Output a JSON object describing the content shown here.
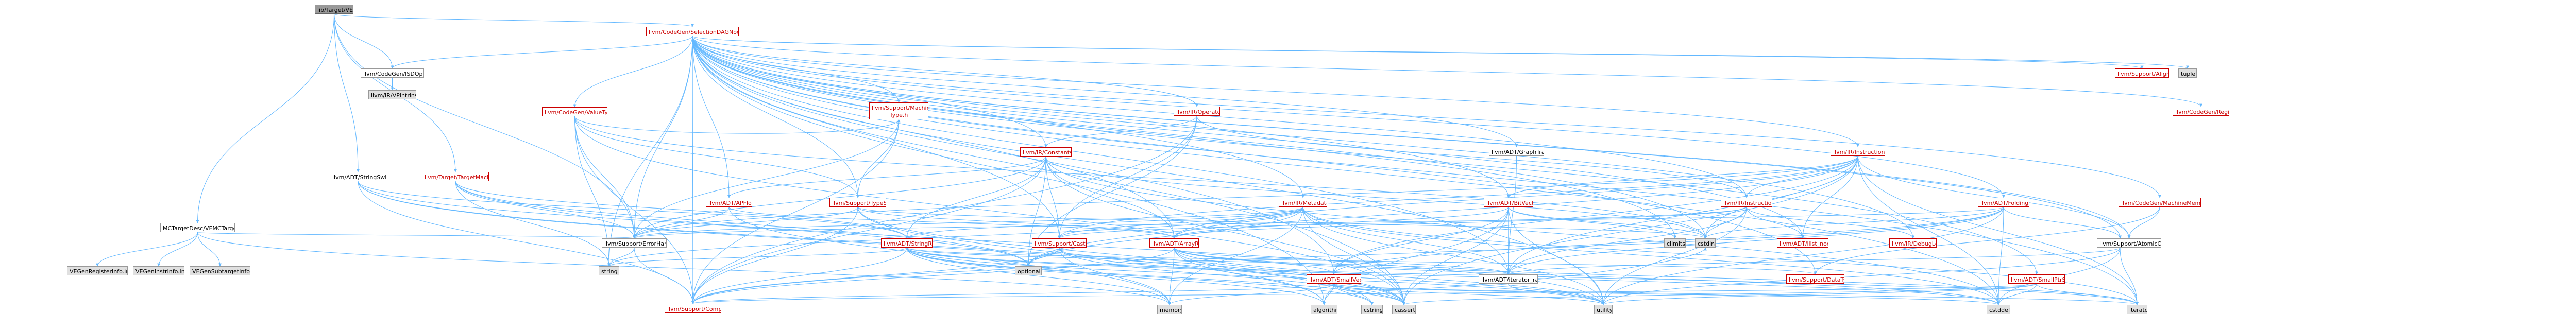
{
  "diagram": {
    "title": "VE/VE.h include dependency graph",
    "nodes": [
      {
        "id": "ve",
        "label": "lib/Target/VE/VE.h",
        "style": "root"
      },
      {
        "id": "dagnodes",
        "label": "llvm/CodeGen/SelectionDAGNodes.h",
        "style": "red"
      },
      {
        "id": "isdopcodes",
        "label": "llvm/CodeGen/ISDOpcodes.h",
        "style": "plain"
      },
      {
        "id": "vpintrinsics",
        "label": "llvm/IR/VPIntrinsics.def",
        "style": "gray"
      },
      {
        "id": "valuetypes",
        "label": "llvm/CodeGen/ValueTypes.h",
        "style": "red"
      },
      {
        "id": "machinevaluetype",
        "label": "llvm/Support/MachineValue Type.h",
        "style": "red"
      },
      {
        "id": "operator",
        "label": "llvm/IR/Operator.h",
        "style": "red"
      },
      {
        "id": "constants",
        "label": "llvm/IR/Constants.h",
        "style": "red"
      },
      {
        "id": "stringswitch",
        "label": "llvm/ADT/StringSwitch.h",
        "style": "plain"
      },
      {
        "id": "targetmachine",
        "label": "llvm/Target/TargetMachine.h",
        "style": "red"
      },
      {
        "id": "mctargetdesc",
        "label": "MCTargetDesc/VEMCTargetDesc.h",
        "style": "plain"
      },
      {
        "id": "apfloat",
        "label": "llvm/ADT/APFloat.h",
        "style": "red"
      },
      {
        "id": "typesize",
        "label": "llvm/Support/TypeSize.h",
        "style": "red"
      },
      {
        "id": "errorhandling",
        "label": "llvm/Support/ErrorHandling.h",
        "style": "plain"
      },
      {
        "id": "string",
        "label": "string",
        "style": "gray"
      },
      {
        "id": "stringref",
        "label": "llvm/ADT/StringRef.h",
        "style": "red"
      },
      {
        "id": "casting",
        "label": "llvm/Support/Casting.h",
        "style": "red"
      },
      {
        "id": "arrayref",
        "label": "llvm/ADT/ArrayRef.h",
        "style": "red"
      },
      {
        "id": "metadata",
        "label": "llvm/IR/Metadata.h",
        "style": "red"
      },
      {
        "id": "graphtraits",
        "label": "llvm/ADT/GraphTraits.h",
        "style": "plain"
      },
      {
        "id": "bitvector",
        "label": "llvm/ADT/BitVector.h",
        "style": "red"
      },
      {
        "id": "instruction",
        "label": "llvm/IR/Instruction.h",
        "style": "red"
      },
      {
        "id": "instructions",
        "label": "llvm/IR/Instructions.h",
        "style": "red"
      },
      {
        "id": "ilistnode",
        "label": "llvm/ADT/ilist_node.h",
        "style": "red"
      },
      {
        "id": "debugloc",
        "label": "llvm/IR/DebugLoc.h",
        "style": "red"
      },
      {
        "id": "foldingset",
        "label": "llvm/ADT/FoldingSet.h",
        "style": "red"
      },
      {
        "id": "adtiterator",
        "label": "llvm/ADT/iterator.h",
        "style": "red"
      },
      {
        "id": "machinememoperand",
        "label": "llvm/CodeGen/MachineMemOperand.h",
        "style": "red"
      },
      {
        "id": "atomicordering",
        "label": "llvm/Support/AtomicOrdering.h",
        "style": "plain"
      },
      {
        "id": "codegenregister",
        "label": "llvm/CodeGen/Register.h",
        "style": "red"
      },
      {
        "id": "alignof",
        "label": "llvm/Support/AlignOf.h",
        "style": "red"
      },
      {
        "id": "tuple",
        "label": "tuple",
        "style": "gray"
      },
      {
        "id": "iteratorrange",
        "label": "llvm/ADT/iterator_range.h",
        "style": "plain"
      },
      {
        "id": "smallvector",
        "label": "llvm/ADT/SmallVector.h",
        "style": "red"
      },
      {
        "id": "datatypes",
        "label": "llvm/Support/DataTypes.h",
        "style": "red"
      },
      {
        "id": "smallptrset",
        "label": "llvm/ADT/SmallPtrSet.h",
        "style": "red"
      },
      {
        "id": "compiler",
        "label": "llvm/Support/Compiler.h",
        "style": "red"
      },
      {
        "id": "optional",
        "label": "optional",
        "style": "gray"
      },
      {
        "id": "memory",
        "label": "memory",
        "style": "gray"
      },
      {
        "id": "algorithm",
        "label": "algorithm",
        "style": "gray"
      },
      {
        "id": "cstring",
        "label": "cstring",
        "style": "gray"
      },
      {
        "id": "cassert",
        "label": "cassert",
        "style": "gray"
      },
      {
        "id": "utility",
        "label": "utility",
        "style": "gray"
      },
      {
        "id": "cstddef",
        "label": "cstddef",
        "style": "gray"
      },
      {
        "id": "iterator",
        "label": "iterator",
        "style": "gray"
      },
      {
        "id": "climits",
        "label": "climits",
        "style": "gray"
      },
      {
        "id": "cstdint",
        "label": "cstdint",
        "style": "gray"
      },
      {
        "id": "veregisterinfo",
        "label": "VEGenRegisterInfo.inc",
        "style": "gray"
      },
      {
        "id": "veinstrinfo",
        "label": "VEGenInstrInfo.inc",
        "style": "gray"
      },
      {
        "id": "vesubtargetinfo",
        "label": "VEGenSubtargetInfo.inc",
        "style": "gray"
      }
    ],
    "edges": [
      [
        "ve",
        "dagnodes"
      ],
      [
        "ve",
        "mctargetdesc"
      ],
      [
        "ve",
        "stringswitch"
      ],
      [
        "ve",
        "targetmachine"
      ],
      [
        "ve",
        "errorhandling"
      ],
      [
        "ve",
        "isdopcodes"
      ],
      [
        "dagnodes",
        "isdopcodes"
      ],
      [
        "dagnodes",
        "valuetypes"
      ],
      [
        "dagnodes",
        "machinevaluetype"
      ],
      [
        "dagnodes",
        "operator"
      ],
      [
        "dagnodes",
        "constants"
      ],
      [
        "dagnodes",
        "apfloat"
      ],
      [
        "dagnodes",
        "metadata"
      ],
      [
        "dagnodes",
        "graphtraits"
      ],
      [
        "dagnodes",
        "bitvector"
      ],
      [
        "dagnodes",
        "instruction"
      ],
      [
        "dagnodes",
        "instructions"
      ],
      [
        "dagnodes",
        "ilistnode"
      ],
      [
        "dagnodes",
        "debugloc"
      ],
      [
        "dagnodes",
        "foldingset"
      ],
      [
        "dagnodes",
        "adtiterator"
      ],
      [
        "dagnodes",
        "machinememoperand"
      ],
      [
        "dagnodes",
        "atomicordering"
      ],
      [
        "dagnodes",
        "codegenregister"
      ],
      [
        "dagnodes",
        "alignof"
      ],
      [
        "dagnodes",
        "tuple"
      ],
      [
        "dagnodes",
        "iteratorrange"
      ],
      [
        "dagnodes",
        "smallvector"
      ],
      [
        "dagnodes",
        "arrayref"
      ],
      [
        "dagnodes",
        "casting"
      ],
      [
        "dagnodes",
        "typesize"
      ],
      [
        "dagnodes",
        "datatypes"
      ],
      [
        "dagnodes",
        "smallptrset"
      ],
      [
        "dagnodes",
        "errorhandling"
      ],
      [
        "dagnodes",
        "compiler"
      ],
      [
        "dagnodes",
        "cassert"
      ],
      [
        "dagnodes",
        "climits"
      ],
      [
        "dagnodes",
        "cstddef"
      ],
      [
        "dagnodes",
        "cstdint"
      ],
      [
        "dagnodes",
        "iterator"
      ],
      [
        "dagnodes",
        "string"
      ],
      [
        "dagnodes",
        "utility"
      ],
      [
        "dagnodes",
        "algorithm"
      ],
      [
        "isdopcodes",
        "vpintrinsics"
      ],
      [
        "valuetypes",
        "machinevaluetype"
      ],
      [
        "valuetypes",
        "typesize"
      ],
      [
        "valuetypes",
        "compiler"
      ],
      [
        "valuetypes",
        "cassert"
      ],
      [
        "valuetypes",
        "cstdint"
      ],
      [
        "valuetypes",
        "string"
      ],
      [
        "valuetypes",
        "errorhandling"
      ],
      [
        "machinevaluetype",
        "typesize"
      ],
      [
        "machinevaluetype",
        "errorhandling"
      ],
      [
        "machinevaluetype",
        "compiler"
      ],
      [
        "operator",
        "constants"
      ],
      [
        "operator",
        "instruction"
      ],
      [
        "operator",
        "casting"
      ],
      [
        "operator",
        "optional"
      ],
      [
        "operator",
        "compiler"
      ],
      [
        "constants",
        "apfloat"
      ],
      [
        "constants",
        "arrayref"
      ],
      [
        "constants",
        "stringref"
      ],
      [
        "constants",
        "casting"
      ],
      [
        "constants",
        "errorhandling"
      ],
      [
        "constants",
        "compiler"
      ],
      [
        "constants",
        "optional"
      ],
      [
        "constants",
        "cassert"
      ],
      [
        "constants",
        "cstddef"
      ],
      [
        "constants",
        "cstdint"
      ],
      [
        "stringswitch",
        "stringref"
      ],
      [
        "stringswitch",
        "compiler"
      ],
      [
        "stringswitch",
        "cassert"
      ],
      [
        "stringswitch",
        "cstring"
      ],
      [
        "stringswitch",
        "optional"
      ],
      [
        "targetmachine",
        "stringref"
      ],
      [
        "targetmachine",
        "errorhandling"
      ],
      [
        "targetmachine",
        "string"
      ],
      [
        "targetmachine",
        "utility"
      ],
      [
        "targetmachine",
        "optional"
      ],
      [
        "mctargetdesc",
        "veregisterinfo"
      ],
      [
        "mctargetdesc",
        "veinstrinfo"
      ],
      [
        "mctargetdesc",
        "vesubtargetinfo"
      ],
      [
        "mctargetdesc",
        "memory"
      ],
      [
        "mctargetdesc",
        "errorhandling"
      ],
      [
        "apfloat",
        "arrayref"
      ],
      [
        "apfloat",
        "errorhandling"
      ],
      [
        "apfloat",
        "memory"
      ],
      [
        "typesize",
        "compiler"
      ],
      [
        "typesize",
        "errorhandling"
      ],
      [
        "typesize",
        "algorithm"
      ],
      [
        "typesize",
        "cassert"
      ],
      [
        "typesize",
        "cstdint"
      ],
      [
        "typesize",
        "arrayref"
      ],
      [
        "errorhandling",
        "compiler"
      ],
      [
        "errorhandling",
        "string"
      ],
      [
        "stringref",
        "iteratorrange"
      ],
      [
        "stringref",
        "datatypes"
      ],
      [
        "stringref",
        "compiler"
      ],
      [
        "stringref",
        "algorithm"
      ],
      [
        "stringref",
        "cassert"
      ],
      [
        "stringref",
        "cstddef"
      ],
      [
        "stringref",
        "cstring"
      ],
      [
        "stringref",
        "iterator"
      ],
      [
        "stringref",
        "string"
      ],
      [
        "stringref",
        "utility"
      ],
      [
        "stringref",
        "memory"
      ],
      [
        "casting",
        "compiler"
      ],
      [
        "casting",
        "cassert"
      ],
      [
        "casting",
        "memory"
      ],
      [
        "casting",
        "optional"
      ],
      [
        "casting",
        "utility"
      ],
      [
        "arrayref",
        "smallvector"
      ],
      [
        "arrayref",
        "compiler"
      ],
      [
        "arrayref",
        "algorithm"
      ],
      [
        "arrayref",
        "cassert"
      ],
      [
        "arrayref",
        "cstddef"
      ],
      [
        "arrayref",
        "iterator"
      ],
      [
        "arrayref",
        "memory"
      ],
      [
        "arrayref",
        "utility"
      ],
      [
        "arrayref",
        "iteratorrange"
      ],
      [
        "metadata",
        "arrayref"
      ],
      [
        "metadata",
        "stringref"
      ],
      [
        "metadata",
        "casting"
      ],
      [
        "metadata",
        "errorhandling"
      ],
      [
        "metadata",
        "iteratorrange"
      ],
      [
        "metadata",
        "cassert"
      ],
      [
        "metadata",
        "cstddef"
      ],
      [
        "metadata",
        "iterator"
      ],
      [
        "metadata",
        "memory"
      ],
      [
        "metadata",
        "string"
      ],
      [
        "metadata",
        "utility"
      ],
      [
        "metadata",
        "optional"
      ],
      [
        "graphtraits",
        "iteratorrange"
      ],
      [
        "bitvector",
        "arrayref"
      ],
      [
        "bitvector",
        "iteratorrange"
      ],
      [
        "bitvector",
        "algorithm"
      ],
      [
        "bitvector",
        "cassert"
      ],
      [
        "bitvector",
        "climits"
      ],
      [
        "bitvector",
        "cstdint"
      ],
      [
        "bitvector",
        "cstdlib"
      ],
      [
        "bitvector",
        "utility"
      ],
      [
        "bitvector",
        "smallvector"
      ],
      [
        "instruction",
        "ilistnode"
      ],
      [
        "instruction",
        "debugloc"
      ],
      [
        "instruction",
        "arrayref"
      ],
      [
        "instruction",
        "casting"
      ],
      [
        "instruction",
        "utility"
      ],
      [
        "instruction",
        "cstdint"
      ],
      [
        "instruction",
        "iteratorrange"
      ],
      [
        "instructions",
        "bitvector"
      ],
      [
        "instructions",
        "arrayref"
      ],
      [
        "instructions",
        "iteratorrange"
      ],
      [
        "instructions",
        "smallvector"
      ],
      [
        "instructions",
        "ilistnode"
      ],
      [
        "instructions",
        "casting"
      ],
      [
        "instructions",
        "errorhandling"
      ],
      [
        "instructions",
        "atomicordering"
      ],
      [
        "instructions",
        "cassert"
      ],
      [
        "instructions",
        "cstddef"
      ],
      [
        "instructions",
        "cstdint"
      ],
      [
        "instructions",
        "iterator"
      ],
      [
        "instructions",
        "optional"
      ],
      [
        "instructions",
        "instruction"
      ],
      [
        "foldingset",
        "smallvector"
      ],
      [
        "foldingset",
        "iteratorrange"
      ],
      [
        "foldingset",
        "adtiterator"
      ],
      [
        "foldingset",
        "compiler"
      ],
      [
        "foldingset",
        "cstddef"
      ],
      [
        "foldingset",
        "cstdint"
      ],
      [
        "foldingset",
        "type_traits"
      ],
      [
        "foldingset",
        "utility"
      ],
      [
        "foldingset",
        "errorhandling"
      ],
      [
        "adtiterator",
        "iteratorrange"
      ],
      [
        "adtiterator",
        "cstddef"
      ],
      [
        "adtiterator",
        "iterator"
      ],
      [
        "adtiterator",
        "type_traits"
      ],
      [
        "adtiterator",
        "utility"
      ],
      [
        "machinememoperand",
        "atomicordering"
      ],
      [
        "machinememoperand",
        "datatypes"
      ],
      [
        "smallvector",
        "compiler"
      ],
      [
        "smallvector",
        "algorithm"
      ],
      [
        "smallvector",
        "cassert"
      ],
      [
        "smallvector",
        "cstddef"
      ],
      [
        "smallvector",
        "cstdint"
      ],
      [
        "smallvector",
        "cstring"
      ],
      [
        "smallvector",
        "iterator"
      ],
      [
        "smallvector",
        "memory"
      ],
      [
        "smallvector",
        "utility"
      ],
      [
        "smallptrset",
        "compiler"
      ],
      [
        "smallptrset",
        "cassert"
      ],
      [
        "smallptrset",
        "cstddef"
      ],
      [
        "smallptrset",
        "iterator"
      ],
      [
        "smallptrset",
        "utility"
      ],
      [
        "iteratorrange",
        "utility"
      ]
    ]
  }
}
